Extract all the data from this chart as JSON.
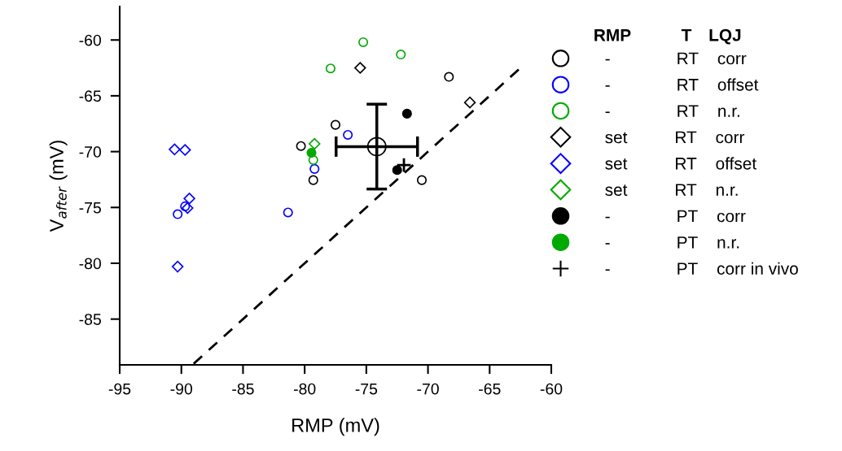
{
  "chart_data": {
    "type": "scatter",
    "xlabel": "RMP (mV)",
    "ylabel": "V$_{after}$ (mV)",
    "xlim": [
      -95,
      -60
    ],
    "ylim": [
      -89.1,
      -57
    ],
    "xticks": [
      -95,
      -90,
      -85,
      -80,
      -75,
      -70,
      -65,
      -60
    ],
    "yticks": [
      -85,
      -80,
      -75,
      -70,
      -65,
      -60
    ],
    "grid": false,
    "legend": "right",
    "legend_title": "RMP T LQJ",
    "series": [
      {
        "name": "- RT corr",
        "color": "#000000",
        "marker": "circle",
        "x": [
          -68.3,
          -77.5,
          -80.3,
          -79.3,
          -70.5
        ],
        "values": [
          -63.3,
          -67.6,
          -69.5,
          -72.55,
          -72.55
        ]
      },
      {
        "name": "- RT offset",
        "color": "#0000ff",
        "marker": "circle",
        "x": [
          -76.5,
          -79.2,
          -89.7,
          -90.3,
          -81.35
        ],
        "values": [
          -68.5,
          -71.55,
          -74.9,
          -75.6,
          -75.45
        ]
      },
      {
        "name": "- RT n.r.",
        "color": "#00aa00",
        "marker": "circle",
        "x": [
          -75.25,
          -72.2,
          -77.9,
          -79.3
        ],
        "values": [
          -60.2,
          -61.3,
          -62.55,
          -70.75
        ]
      },
      {
        "name": "set RT corr",
        "color": "#000000",
        "marker": "diamond",
        "x": [
          -75.5,
          -66.6
        ],
        "values": [
          -62.5,
          -65.6
        ]
      },
      {
        "name": "set RT offset",
        "color": "#0000ff",
        "marker": "diamond",
        "x": [
          -90.55,
          -89.7,
          -89.35,
          -89.5,
          -90.3
        ],
        "values": [
          -69.8,
          -69.85,
          -74.2,
          -75.05,
          -80.3
        ]
      },
      {
        "name": "set RT n.r.",
        "color": "#00aa00",
        "marker": "diamond",
        "x": [
          -79.2
        ],
        "values": [
          -69.3
        ]
      },
      {
        "name": "- PT corr",
        "color": "#000000",
        "marker": "filled_circle",
        "x": [
          -71.7,
          -72.5
        ],
        "values": [
          -66.6,
          -71.65
        ]
      },
      {
        "name": "- PT n.r.",
        "color": "#00aa00",
        "marker": "filled_circle",
        "x": [
          -79.45
        ],
        "values": [
          -70.1
        ]
      },
      {
        "name": "- PT corr in vivo",
        "color": "#000000",
        "marker": "cross",
        "x": [
          -71.95
        ],
        "values": [
          -71.2
        ]
      },
      {
        "color": "#000000",
        "marker": "circle",
        "x": [
          -74.15
        ],
        "values": [
          -69.55
        ],
        "errors": [
          3.8
        ],
        "xerrors": [
          3.3
        ]
      },
      {
        "type": "line",
        "color": "#000000",
        "line_style": "dashed",
        "marker": "none",
        "x": [
          -89,
          -62.6
        ],
        "values": [
          -89,
          -62.6
        ]
      }
    ]
  }
}
